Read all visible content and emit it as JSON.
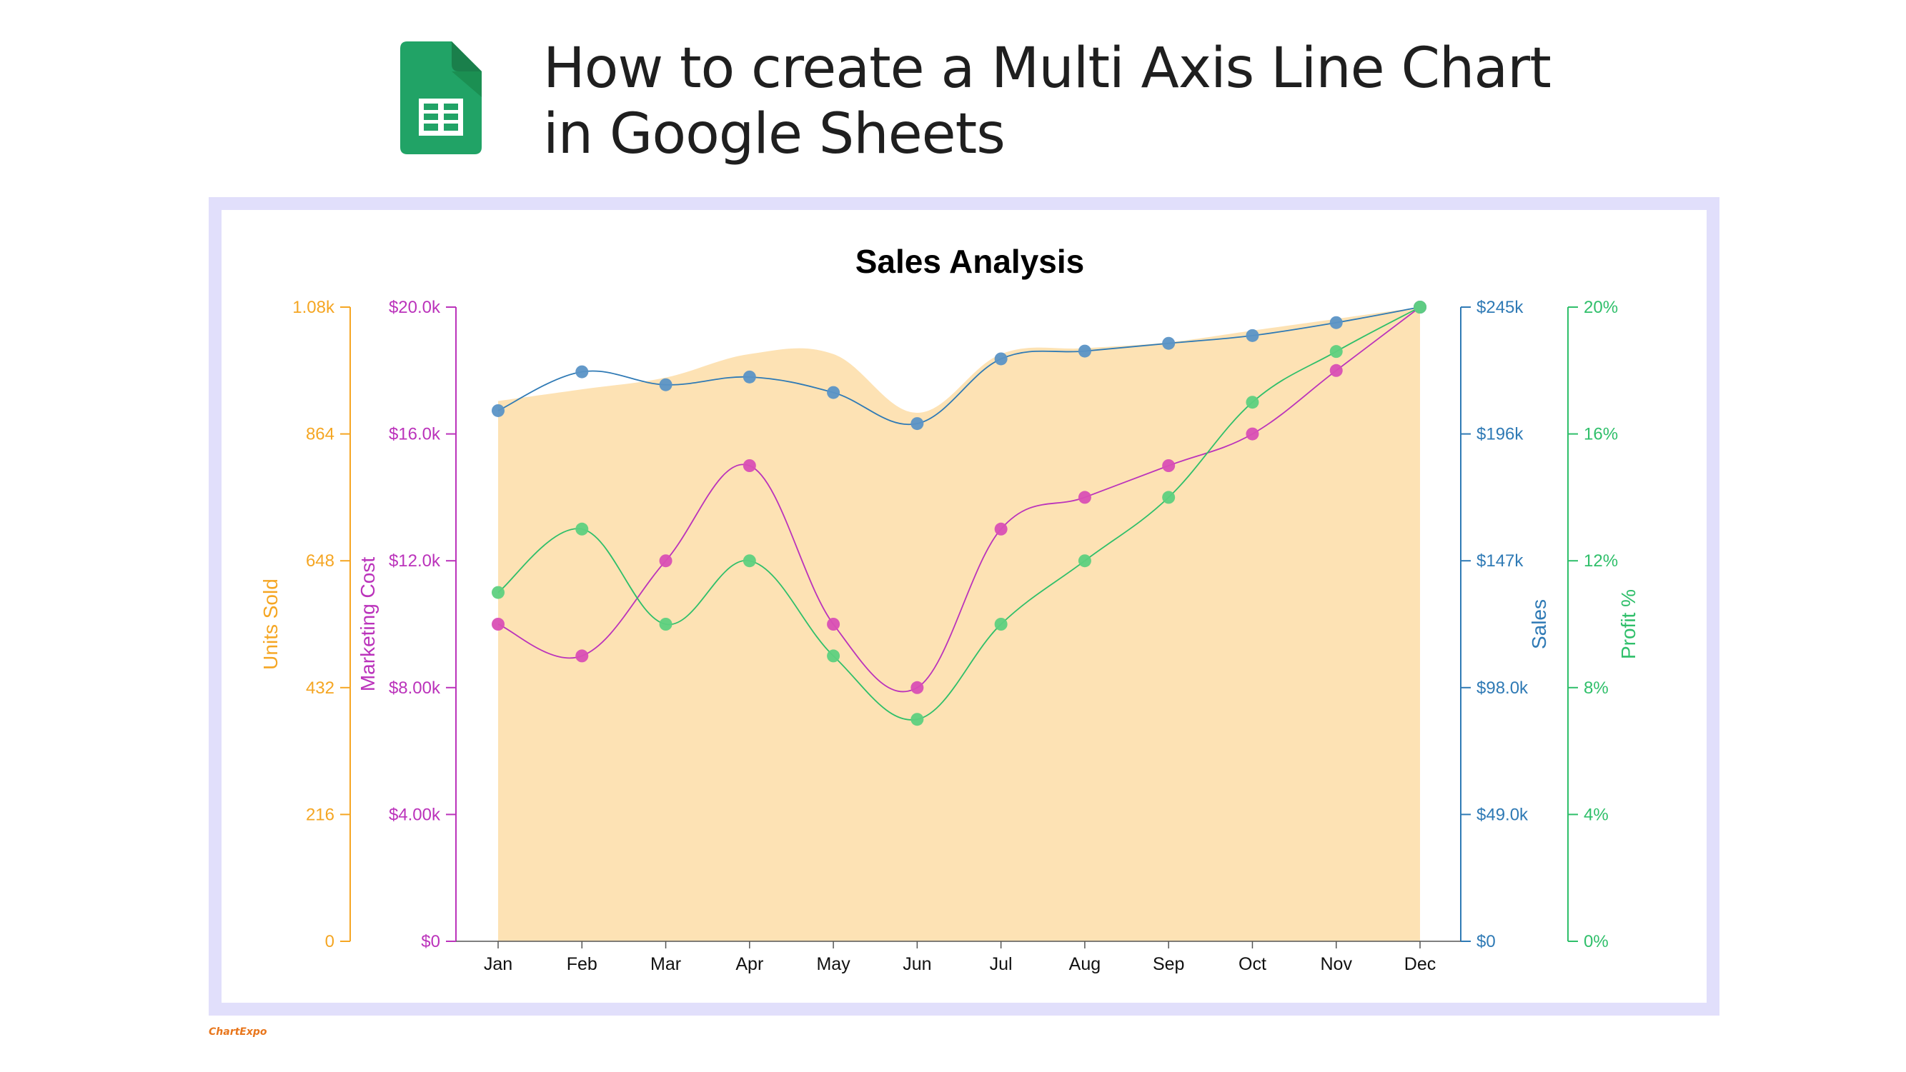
{
  "header": {
    "title_line1": "How to create a Multi Axis Line Chart",
    "title_line2": "in Google Sheets",
    "logo_icon": "google-sheets-icon"
  },
  "brand": "ChartExpo",
  "colors": {
    "units_sold": "#f5a623",
    "units_sold_fill": "#fde2b4",
    "marketing_cost": "#bb33bb",
    "marketing_cost_point": "#d94fb5",
    "sales": "#2f7ab5",
    "sales_point": "#5b94c6",
    "profit": "#2fbf6a",
    "profit_point": "#5ed07f"
  },
  "chart_data": {
    "type": "line",
    "title": "Sales Analysis",
    "categories": [
      "Jan",
      "Feb",
      "Mar",
      "Apr",
      "May",
      "Jun",
      "Jul",
      "Aug",
      "Sep",
      "Oct",
      "Nov",
      "Dec"
    ],
    "series": [
      {
        "name": "Units Sold",
        "render": "area",
        "axis": "Units Sold",
        "values": [
          920,
          940,
          960,
          1000,
          1000,
          900,
          1000,
          1010,
          1020,
          1040,
          1060,
          1080
        ]
      },
      {
        "name": "Marketing Cost",
        "render": "line",
        "axis": "Marketing Cost",
        "values": [
          10000,
          9000,
          12000,
          15000,
          10000,
          8000,
          13000,
          14000,
          15000,
          16000,
          18000,
          20000
        ]
      },
      {
        "name": "Sales",
        "render": "line",
        "axis": "Sales",
        "values": [
          205000,
          220000,
          215000,
          218000,
          212000,
          200000,
          225000,
          228000,
          231000,
          234000,
          239000,
          245000
        ]
      },
      {
        "name": "Profit %",
        "render": "line",
        "axis": "Profit %",
        "values": [
          11,
          13,
          10,
          12,
          9,
          7,
          10,
          12,
          14,
          17,
          18.6,
          20
        ]
      }
    ],
    "axes": [
      {
        "key": "units",
        "label": "Units Sold",
        "side": "left",
        "range": [
          0,
          1080
        ],
        "ticks": [
          "0",
          "216",
          "432",
          "648",
          "864",
          "1.08k"
        ]
      },
      {
        "key": "cost",
        "label": "Marketing Cost",
        "side": "left",
        "range": [
          0,
          20000
        ],
        "ticks": [
          "$0",
          "$4.00k",
          "$8.00k",
          "$12.0k",
          "$16.0k",
          "$20.0k"
        ]
      },
      {
        "key": "sales",
        "label": "Sales",
        "side": "right",
        "range": [
          0,
          245000
        ],
        "ticks": [
          "$0",
          "$49.0k",
          "$98.0k",
          "$147k",
          "$196k",
          "$245k"
        ]
      },
      {
        "key": "profit",
        "label": "Profit %",
        "side": "right",
        "range": [
          0,
          20
        ],
        "ticks": [
          "0%",
          "4%",
          "8%",
          "12%",
          "16%",
          "20%"
        ]
      }
    ],
    "grid": false,
    "legend": "none"
  }
}
